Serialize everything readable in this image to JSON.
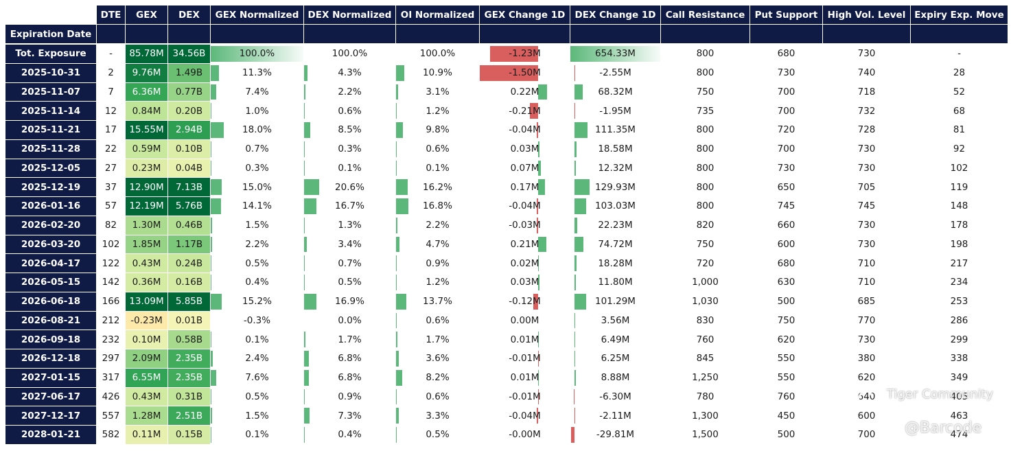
{
  "header": {
    "index_label": "Expiration Date",
    "columns": [
      "DTE",
      "GEX",
      "DEX",
      "GEX Normalized",
      "DEX Normalized",
      "OI Normalized",
      "GEX Change 1D",
      "DEX Change 1D",
      "Call Resistance",
      "Put Support",
      "High Vol. Level",
      "Expiry Exp. Move"
    ]
  },
  "colors": {
    "header_bg": "#0f1b44",
    "bar_green": "#5cb87a",
    "bar_red": "#d95f5f"
  },
  "watermark": {
    "brand": "Tiger Community",
    "handle": "@Barcode"
  },
  "chart_data": {
    "type": "table",
    "columns": [
      "Expiration Date",
      "DTE",
      "GEX",
      "DEX",
      "GEX Normalized",
      "DEX Normalized",
      "OI Normalized",
      "GEX Change 1D",
      "DEX Change 1D",
      "Call Resistance",
      "Put Support",
      "High Vol. Level",
      "Expiry Exp. Move"
    ],
    "rows": [
      {
        "date": "Tot. Exposure",
        "dte": "-",
        "gex": "85.78M",
        "dex": "34.56B",
        "gex_norm": "100.0%",
        "dex_norm": "100.0%",
        "oi_norm": "100.0%",
        "gex_chg": "-1.23M",
        "dex_chg": "654.33M",
        "call_res": "800",
        "put_sup": "680",
        "hvl": "730",
        "exp_move": "-"
      },
      {
        "date": "2025-10-31",
        "dte": "2",
        "gex": "9.76M",
        "dex": "1.49B",
        "gex_norm": "11.3%",
        "dex_norm": "4.3%",
        "oi_norm": "10.9%",
        "gex_chg": "-1.50M",
        "dex_chg": "-2.55M",
        "call_res": "800",
        "put_sup": "730",
        "hvl": "740",
        "exp_move": "28"
      },
      {
        "date": "2025-11-07",
        "dte": "7",
        "gex": "6.36M",
        "dex": "0.77B",
        "gex_norm": "7.4%",
        "dex_norm": "2.2%",
        "oi_norm": "3.1%",
        "gex_chg": "0.22M",
        "dex_chg": "68.32M",
        "call_res": "750",
        "put_sup": "700",
        "hvl": "718",
        "exp_move": "52"
      },
      {
        "date": "2025-11-14",
        "dte": "12",
        "gex": "0.84M",
        "dex": "0.20B",
        "gex_norm": "1.0%",
        "dex_norm": "0.6%",
        "oi_norm": "1.2%",
        "gex_chg": "-0.21M",
        "dex_chg": "-1.95M",
        "call_res": "735",
        "put_sup": "700",
        "hvl": "732",
        "exp_move": "68"
      },
      {
        "date": "2025-11-21",
        "dte": "17",
        "gex": "15.55M",
        "dex": "2.94B",
        "gex_norm": "18.0%",
        "dex_norm": "8.5%",
        "oi_norm": "9.8%",
        "gex_chg": "-0.04M",
        "dex_chg": "111.35M",
        "call_res": "800",
        "put_sup": "720",
        "hvl": "728",
        "exp_move": "81"
      },
      {
        "date": "2025-11-28",
        "dte": "22",
        "gex": "0.59M",
        "dex": "0.10B",
        "gex_norm": "0.7%",
        "dex_norm": "0.3%",
        "oi_norm": "0.6%",
        "gex_chg": "0.03M",
        "dex_chg": "18.58M",
        "call_res": "800",
        "put_sup": "700",
        "hvl": "730",
        "exp_move": "92"
      },
      {
        "date": "2025-12-05",
        "dte": "27",
        "gex": "0.23M",
        "dex": "0.04B",
        "gex_norm": "0.3%",
        "dex_norm": "0.1%",
        "oi_norm": "0.1%",
        "gex_chg": "0.07M",
        "dex_chg": "12.32M",
        "call_res": "800",
        "put_sup": "730",
        "hvl": "730",
        "exp_move": "102"
      },
      {
        "date": "2025-12-19",
        "dte": "37",
        "gex": "12.90M",
        "dex": "7.13B",
        "gex_norm": "15.0%",
        "dex_norm": "20.6%",
        "oi_norm": "16.2%",
        "gex_chg": "0.17M",
        "dex_chg": "129.93M",
        "call_res": "800",
        "put_sup": "650",
        "hvl": "705",
        "exp_move": "119"
      },
      {
        "date": "2026-01-16",
        "dte": "57",
        "gex": "12.19M",
        "dex": "5.76B",
        "gex_norm": "14.1%",
        "dex_norm": "16.7%",
        "oi_norm": "16.8%",
        "gex_chg": "-0.04M",
        "dex_chg": "103.03M",
        "call_res": "800",
        "put_sup": "745",
        "hvl": "745",
        "exp_move": "148"
      },
      {
        "date": "2026-02-20",
        "dte": "82",
        "gex": "1.30M",
        "dex": "0.46B",
        "gex_norm": "1.5%",
        "dex_norm": "1.3%",
        "oi_norm": "2.2%",
        "gex_chg": "-0.03M",
        "dex_chg": "22.23M",
        "call_res": "820",
        "put_sup": "660",
        "hvl": "730",
        "exp_move": "178"
      },
      {
        "date": "2026-03-20",
        "dte": "102",
        "gex": "1.85M",
        "dex": "1.17B",
        "gex_norm": "2.2%",
        "dex_norm": "3.4%",
        "oi_norm": "4.7%",
        "gex_chg": "0.21M",
        "dex_chg": "74.72M",
        "call_res": "750",
        "put_sup": "600",
        "hvl": "730",
        "exp_move": "198"
      },
      {
        "date": "2026-04-17",
        "dte": "122",
        "gex": "0.43M",
        "dex": "0.24B",
        "gex_norm": "0.5%",
        "dex_norm": "0.7%",
        "oi_norm": "0.9%",
        "gex_chg": "0.02M",
        "dex_chg": "18.28M",
        "call_res": "720",
        "put_sup": "680",
        "hvl": "710",
        "exp_move": "217"
      },
      {
        "date": "2026-05-15",
        "dte": "142",
        "gex": "0.36M",
        "dex": "0.16B",
        "gex_norm": "0.4%",
        "dex_norm": "0.5%",
        "oi_norm": "1.2%",
        "gex_chg": "0.03M",
        "dex_chg": "11.80M",
        "call_res": "1,000",
        "put_sup": "630",
        "hvl": "710",
        "exp_move": "234"
      },
      {
        "date": "2026-06-18",
        "dte": "166",
        "gex": "13.09M",
        "dex": "5.85B",
        "gex_norm": "15.2%",
        "dex_norm": "16.9%",
        "oi_norm": "13.7%",
        "gex_chg": "-0.12M",
        "dex_chg": "101.29M",
        "call_res": "1,030",
        "put_sup": "500",
        "hvl": "685",
        "exp_move": "253"
      },
      {
        "date": "2026-08-21",
        "dte": "212",
        "gex": "-0.23M",
        "dex": "0.01B",
        "gex_norm": "-0.3%",
        "dex_norm": "0.0%",
        "oi_norm": "0.6%",
        "gex_chg": "0.00M",
        "dex_chg": "3.56M",
        "call_res": "830",
        "put_sup": "750",
        "hvl": "770",
        "exp_move": "286"
      },
      {
        "date": "2026-09-18",
        "dte": "232",
        "gex": "0.10M",
        "dex": "0.58B",
        "gex_norm": "0.1%",
        "dex_norm": "1.7%",
        "oi_norm": "1.7%",
        "gex_chg": "0.01M",
        "dex_chg": "6.49M",
        "call_res": "760",
        "put_sup": "620",
        "hvl": "730",
        "exp_move": "299"
      },
      {
        "date": "2026-12-18",
        "dte": "297",
        "gex": "2.09M",
        "dex": "2.35B",
        "gex_norm": "2.4%",
        "dex_norm": "6.8%",
        "oi_norm": "3.6%",
        "gex_chg": "-0.01M",
        "dex_chg": "6.25M",
        "call_res": "845",
        "put_sup": "550",
        "hvl": "380",
        "exp_move": "338"
      },
      {
        "date": "2027-01-15",
        "dte": "317",
        "gex": "6.55M",
        "dex": "2.35B",
        "gex_norm": "7.6%",
        "dex_norm": "6.8%",
        "oi_norm": "8.2%",
        "gex_chg": "0.01M",
        "dex_chg": "8.88M",
        "call_res": "1,250",
        "put_sup": "550",
        "hvl": "620",
        "exp_move": "349"
      },
      {
        "date": "2027-06-17",
        "dte": "426",
        "gex": "0.43M",
        "dex": "0.31B",
        "gex_norm": "0.5%",
        "dex_norm": "0.9%",
        "oi_norm": "0.6%",
        "gex_chg": "-0.01M",
        "dex_chg": "-6.30M",
        "call_res": "780",
        "put_sup": "760",
        "hvl": "640",
        "exp_move": "405"
      },
      {
        "date": "2027-12-17",
        "dte": "557",
        "gex": "1.28M",
        "dex": "2.51B",
        "gex_norm": "1.5%",
        "dex_norm": "7.3%",
        "oi_norm": "3.3%",
        "gex_chg": "-0.04M",
        "dex_chg": "-2.11M",
        "call_res": "1,300",
        "put_sup": "450",
        "hvl": "600",
        "exp_move": "463"
      },
      {
        "date": "2028-01-21",
        "dte": "582",
        "gex": "0.11M",
        "dex": "0.15B",
        "gex_norm": "0.1%",
        "dex_norm": "0.4%",
        "oi_norm": "0.5%",
        "gex_chg": "-0.00M",
        "dex_chg": "-29.81M",
        "call_res": "1,500",
        "put_sup": "500",
        "hvl": "700",
        "exp_move": "474"
      }
    ]
  }
}
